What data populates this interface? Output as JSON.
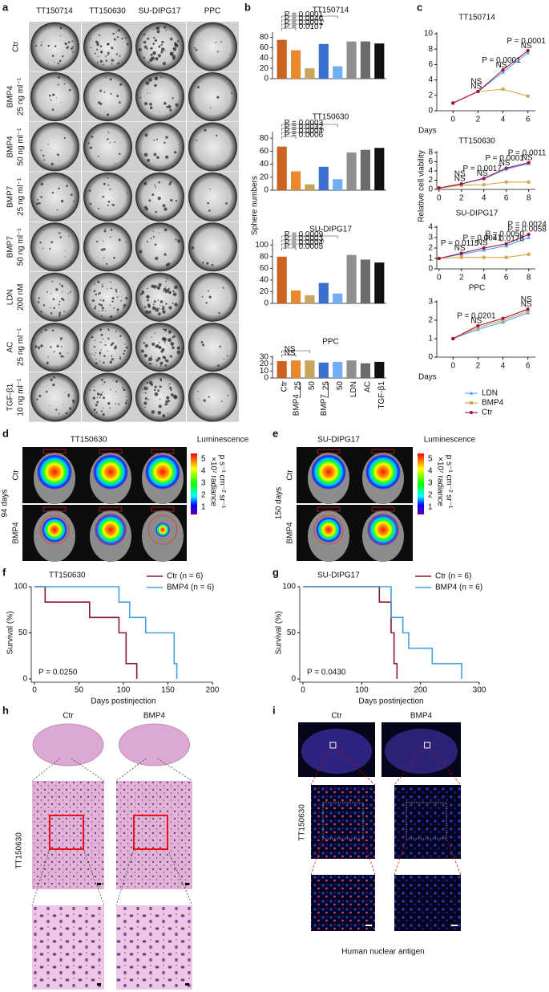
{
  "panels": {
    "a": {
      "label": "a",
      "columns": [
        "TT150714",
        "TT150630",
        "SU-DIPG17",
        "PPC"
      ],
      "rows": [
        [
          "Ctr"
        ],
        [
          "BMP4",
          "25 ng ml⁻¹"
        ],
        [
          "BMP4",
          "50 ng ml⁻¹"
        ],
        [
          "BMP7",
          "25 ng ml⁻¹"
        ],
        [
          "BMP7",
          "50 ng ml⁻¹"
        ],
        [
          "LDN",
          "200 nM"
        ],
        [
          "AC",
          "25 ng ml⁻¹"
        ],
        [
          "TGF-β1",
          "10 ng ml⁻¹"
        ]
      ]
    },
    "b": {
      "label": "b"
    },
    "c": {
      "label": "c"
    },
    "d": {
      "label": "d",
      "title": "TT150630",
      "legend_title": "Luminescence",
      "scale": [
        5,
        4,
        3,
        2,
        1
      ],
      "unit": [
        "×10⁷ radiance",
        "p s⁻¹ cm⁻² sr⁻¹"
      ],
      "rows": [
        "Ctr",
        "BMP4"
      ],
      "time": "94 days"
    },
    "e": {
      "label": "e",
      "title": "SU-DIPG17",
      "legend_title": "Luminescence",
      "scale": [
        5,
        4,
        3,
        2,
        1
      ],
      "unit": [
        "×10⁷ radiance",
        "p s⁻¹ cm⁻² sr⁻¹"
      ],
      "rows": [
        "Ctr",
        "BMP4"
      ],
      "time": "150 days"
    },
    "f": {
      "label": "f"
    },
    "g": {
      "label": "g"
    },
    "h": {
      "label": "h",
      "columns": [
        "Ctr",
        "BMP4"
      ],
      "row": "TT150630"
    },
    "i": {
      "label": "i",
      "columns": [
        "Ctr",
        "BMP4"
      ],
      "row": "TT150630",
      "caption": "Human nuclear antigen"
    }
  },
  "chart_data": [
    {
      "type": "bar",
      "title": "TT150714",
      "values": [
        75,
        55,
        20,
        67,
        24,
        72,
        72,
        68
      ],
      "colors": [
        "#c9631f",
        "#e8892e",
        "#c8a55a",
        "#3b6fd0",
        "#6fb0f5",
        "#8f8f8f",
        "#6b6b6b",
        "#111111"
      ],
      "ylim": [
        0,
        90
      ],
      "yticks": [
        0,
        20,
        40,
        60,
        80
      ],
      "annotations": [
        "P = 0.0001",
        "P = 0.0046",
        "P = 0.0001",
        "P = 0.0107"
      ]
    },
    {
      "type": "bar",
      "title": "TT150630",
      "y_label": "Sphere numbers",
      "values": [
        67,
        29,
        9,
        36,
        17,
        58,
        62,
        65
      ],
      "colors": [
        "#c9631f",
        "#e8892e",
        "#c8a55a",
        "#3b6fd0",
        "#6fb0f5",
        "#8f8f8f",
        "#6b6b6b",
        "#111111"
      ],
      "ylim": [
        0,
        90
      ],
      "yticks": [
        0,
        20,
        40,
        60,
        80
      ],
      "annotations": [
        "P = 0.0003",
        "P = 0.0032",
        "P = 0.0004",
        "P = 0.0006"
      ]
    },
    {
      "type": "bar",
      "title": "SU-DIPG17",
      "values": [
        80,
        22,
        14,
        35,
        17,
        83,
        75,
        70
      ],
      "colors": [
        "#c9631f",
        "#e8892e",
        "#c8a55a",
        "#3b6fd0",
        "#6fb0f5",
        "#8f8f8f",
        "#6b6b6b",
        "#111111"
      ],
      "ylim": [
        0,
        110
      ],
      "yticks": [
        0,
        20,
        40,
        60,
        80,
        100
      ],
      "annotations": [
        "P = 0.0009",
        "P = 0.0003",
        "P = 0.0004",
        "P = 0.0005"
      ]
    },
    {
      "type": "bar",
      "title": "PPC",
      "categories": [
        "Ctr",
        "25",
        "50",
        "25",
        "50",
        "LDN",
        "AC",
        "TGF-β1"
      ],
      "group_labels": [
        "BMP4",
        "BMP7"
      ],
      "values": [
        24,
        25,
        25,
        22,
        23,
        25,
        21,
        23
      ],
      "colors": [
        "#c9631f",
        "#e8892e",
        "#c8a55a",
        "#3b6fd0",
        "#6fb0f5",
        "#8f8f8f",
        "#6b6b6b",
        "#111111"
      ],
      "ylim": [
        0,
        32
      ],
      "yticks": [
        0,
        10,
        20,
        30
      ],
      "annotations": [
        "NS",
        "NS"
      ]
    },
    {
      "type": "line",
      "title": "TT150714",
      "x_label": "Days",
      "x": [
        0,
        2,
        4,
        6
      ],
      "xlim": [
        -1.3,
        6.6
      ],
      "xticks": [
        0,
        2,
        4,
        6
      ],
      "ylim": [
        0,
        10
      ],
      "yticks": [
        0,
        2,
        4,
        6,
        8,
        10
      ],
      "series": [
        {
          "color": "#4da6ff",
          "marker": "triangle",
          "values": [
            1,
            2.5,
            5,
            7.5
          ]
        },
        {
          "color": "#d4a84a",
          "marker": "square",
          "values": [
            1,
            2.5,
            2.8,
            1.9
          ]
        },
        {
          "color": "#a3123f",
          "marker": "circle",
          "values": [
            1,
            2.5,
            5.3,
            7.8
          ]
        }
      ],
      "annotations": [
        [],
        [
          {
            "text": "NS",
            "color": "#d9a21b"
          },
          {
            "text": "NS",
            "color": "#2f9bf0"
          }
        ],
        [
          {
            "text": "P = 0.0001",
            "color": "#d9a21b"
          },
          {
            "text": "NS",
            "color": "#2f9bf0"
          }
        ],
        [
          {
            "text": "P = 0.0001",
            "color": "#d9a21b"
          },
          {
            "text": "NS",
            "color": "#2f9bf0"
          }
        ]
      ]
    },
    {
      "type": "line",
      "title": "TT150630",
      "y_label": "Relative cell viability",
      "x": [
        0,
        2,
        4,
        6,
        8
      ],
      "xlim": [
        -0.2,
        8.6
      ],
      "xticks": [
        0,
        2,
        4,
        6,
        8
      ],
      "ylim": [
        0,
        8
      ],
      "yticks": [
        0,
        2,
        4,
        6,
        8
      ],
      "series": [
        {
          "color": "#4da6ff",
          "marker": "triangle",
          "values": [
            0.3,
            1.2,
            2.3,
            4.4,
            5.6
          ]
        },
        {
          "color": "#d4a84a",
          "marker": "square",
          "values": [
            0.3,
            0.9,
            1.0,
            1.6,
            1.6
          ]
        },
        {
          "color": "#a3123f",
          "marker": "circle",
          "values": [
            0.3,
            1.2,
            2.4,
            4.6,
            5.8
          ]
        }
      ],
      "annotations": [
        [],
        [
          {
            "text": "NS",
            "color": "#d9a21b"
          },
          {
            "text": "NS",
            "color": "#2f9bf0"
          }
        ],
        [
          {
            "text": "P = 0.0017",
            "color": "#d9a21b"
          },
          {
            "text": "NS",
            "color": "#2f9bf0"
          }
        ],
        [
          {
            "text": "P = 0.0001",
            "color": "#d9a21b"
          },
          {
            "text": "NS",
            "color": "#2f9bf0"
          }
        ],
        [
          {
            "text": "P = 0.0011",
            "color": "#d9a21b"
          },
          {
            "text": "NS",
            "color": "#2f9bf0"
          }
        ]
      ]
    },
    {
      "type": "line",
      "title": "SU-DIPG17",
      "x": [
        0,
        2,
        4,
        6,
        8
      ],
      "xlim": [
        -0.2,
        8.6
      ],
      "xticks": [
        0,
        2,
        4,
        6,
        8
      ],
      "ylim": [
        0,
        4
      ],
      "yticks": [
        0,
        1,
        2,
        3,
        4
      ],
      "series": [
        {
          "color": "#4da6ff",
          "marker": "triangle",
          "values": [
            1,
            1.4,
            1.8,
            2.2,
            3.0
          ]
        },
        {
          "color": "#d4a84a",
          "marker": "square",
          "values": [
            1,
            1.1,
            1.1,
            1.1,
            1.4
          ]
        },
        {
          "color": "#a3123f",
          "marker": "circle",
          "values": [
            1,
            1.5,
            2,
            2.4,
            3.3
          ]
        }
      ],
      "annotations": [
        [],
        [
          {
            "text": "P = 0.0115",
            "color": "#d9a21b"
          },
          {
            "text": "NS",
            "color": "#2f9bf0"
          }
        ],
        [
          {
            "text": "P = 0.0041",
            "color": "#d9a21b"
          },
          {
            "text": "NS",
            "color": "#2f9bf0"
          }
        ],
        [
          {
            "text": "P = 0.0050",
            "color": "#d9a21b"
          },
          {
            "text": "P = 0.0178",
            "color": "#2f9bf0"
          }
        ],
        [
          {
            "text": "P = 0.0024",
            "color": "#d9a21b"
          },
          {
            "text": "P = 0.0058",
            "color": "#2f9bf0"
          }
        ]
      ]
    },
    {
      "type": "line",
      "title": "PPC",
      "x_label": "Days",
      "legend": "below",
      "x": [
        0,
        2,
        4,
        6
      ],
      "xlim": [
        -1.3,
        6.6
      ],
      "xticks": [
        0,
        2,
        4,
        6
      ],
      "ylim": [
        0,
        3
      ],
      "yticks": [
        0,
        1,
        2,
        3
      ],
      "series": [
        {
          "name": "LDN",
          "color": "#4da6ff",
          "marker": "triangle",
          "values": [
            1,
            1.5,
            1.9,
            2.4
          ]
        },
        {
          "name": "BMP4",
          "color": "#d4a84a",
          "marker": "square",
          "values": [
            1,
            1.6,
            2.0,
            2.5
          ]
        },
        {
          "name": "Ctr",
          "color": "#a3123f",
          "marker": "circle",
          "values": [
            1,
            1.7,
            2.1,
            2.6
          ]
        }
      ],
      "annotations": [
        [],
        [
          {
            "text": "P = 0.0201",
            "color": "#d9a21b"
          },
          {
            "text": "NS",
            "color": "#2f9bf0"
          }
        ],
        [],
        [
          {
            "text": "NS",
            "color": "#d9a21b"
          },
          {
            "text": "NS",
            "color": "#2f9bf0"
          }
        ]
      ]
    },
    {
      "type": "line",
      "step": true,
      "title": "TT150630",
      "x_label": "Days postinjection",
      "y_label": "Survival (%)",
      "annotation": "P = 0.0250",
      "xlim": [
        0,
        200
      ],
      "xticks": [
        0,
        50,
        100,
        150,
        200
      ],
      "ylim": [
        0,
        100
      ],
      "yticks": [
        0,
        50,
        100
      ],
      "series": [
        {
          "name": "Ctr (n = 6)",
          "color": "#8b1a2e",
          "x": [
            0,
            12,
            62,
            95,
            103,
            115
          ],
          "values": [
            100,
            83.3,
            66.7,
            50,
            16.7,
            0
          ]
        },
        {
          "name": "BMP4 (n = 6)",
          "color": "#4a9fe0",
          "x": [
            0,
            95,
            107,
            125,
            157,
            160
          ],
          "values": [
            100,
            83.3,
            66.7,
            50,
            16.7,
            0
          ]
        }
      ]
    },
    {
      "type": "line",
      "step": true,
      "title": "SU-DIPG17",
      "x_label": "Days postinjection",
      "y_label": "Survival (%)",
      "annotation": "P = 0.0430",
      "xlim": [
        0,
        300
      ],
      "xticks": [
        0,
        100,
        200,
        300
      ],
      "ylim": [
        0,
        100
      ],
      "yticks": [
        0,
        50,
        100
      ],
      "series": [
        {
          "name": "Ctr (n = 6)",
          "color": "#8b1a2e",
          "x": [
            0,
            130,
            150,
            155,
            160
          ],
          "values": [
            100,
            83.3,
            50,
            16.7,
            0
          ]
        },
        {
          "name": "BMP4 (n = 6)",
          "color": "#4a9fe0",
          "x": [
            0,
            150,
            170,
            180,
            220,
            270
          ],
          "values": [
            100,
            66.7,
            50,
            33.3,
            16.7,
            0
          ]
        }
      ]
    }
  ]
}
